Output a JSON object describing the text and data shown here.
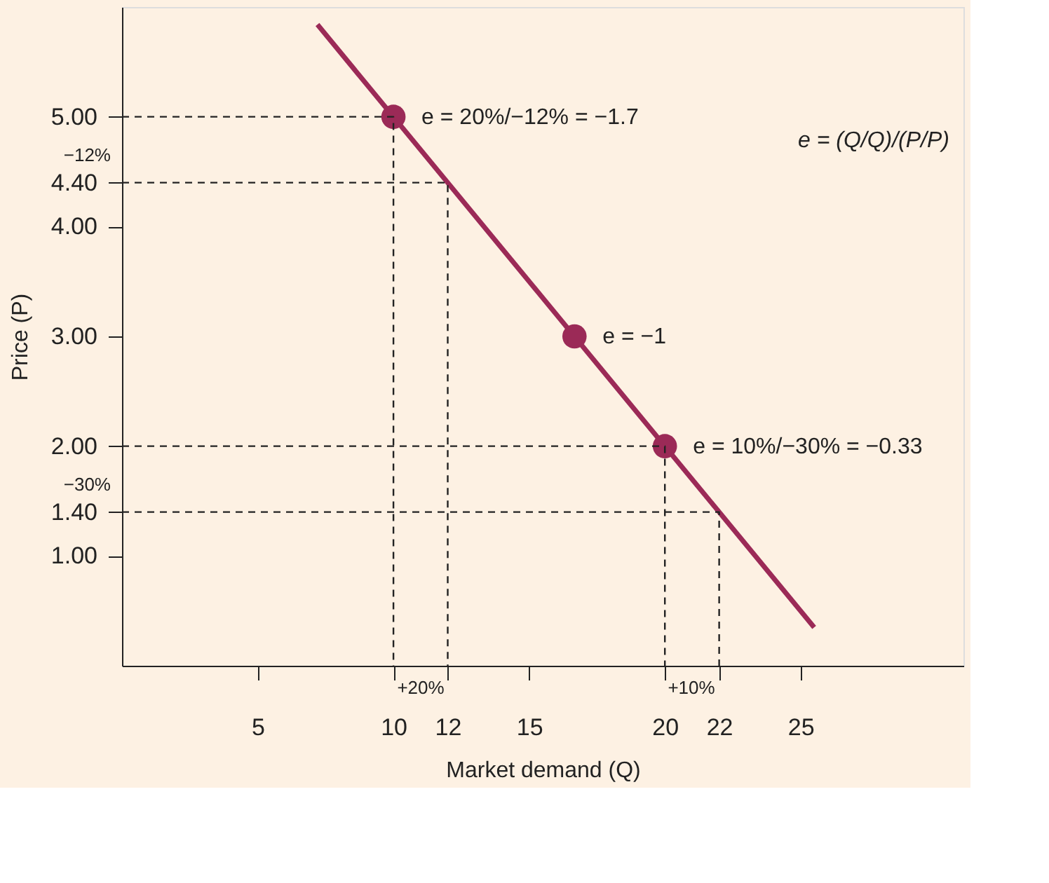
{
  "chart_data": {
    "type": "line",
    "xlabel": "Market demand (Q)",
    "ylabel": "Price (P)",
    "xlim": [
      0,
      31
    ],
    "ylim": [
      0,
      6
    ],
    "xticks": [
      5,
      10,
      12,
      15,
      20,
      22,
      25
    ],
    "yticks": [
      {
        "value": 1,
        "label": "1.00"
      },
      {
        "value": 1.4,
        "label": "1.40"
      },
      {
        "value": 2,
        "label": "2.00"
      },
      {
        "value": 3,
        "label": "3.00"
      },
      {
        "value": 4,
        "label": "4.00"
      },
      {
        "value": 4.4,
        "label": "4.40"
      },
      {
        "value": 5,
        "label": "5.00"
      }
    ],
    "grid": false,
    "series": [
      {
        "color": "#9b2a57",
        "x": [
          7.2,
          25.5
        ],
        "values": [
          5.84,
          0.35
        ],
        "marker": "none",
        "line_style": "solid"
      },
      {
        "type": "scatter",
        "color": "#9b2a57",
        "x": [
          10,
          16.67,
          20
        ],
        "values": [
          5,
          3,
          2
        ],
        "marker": "circle"
      },
      {
        "type": "line",
        "color": "#222222",
        "x": [
          0,
          10,
          10
        ],
        "values": [
          5,
          5,
          0
        ],
        "marker": "none",
        "line_style": "dashed"
      },
      {
        "type": "line",
        "color": "#222222",
        "x": [
          0,
          12,
          12
        ],
        "values": [
          4.4,
          4.4,
          0
        ],
        "marker": "none",
        "line_style": "dashed"
      },
      {
        "type": "line",
        "color": "#222222",
        "x": [
          0,
          20,
          20
        ],
        "values": [
          2,
          2,
          0
        ],
        "marker": "none",
        "line_style": "dashed"
      },
      {
        "type": "line",
        "color": "#222222",
        "x": [
          0,
          22,
          22
        ],
        "values": [
          1.4,
          1.4,
          0
        ],
        "marker": "none",
        "line_style": "dashed"
      }
    ],
    "annotations": [
      {
        "text": "e = 20%/−12% = −1.7",
        "x": 10,
        "y": 5
      },
      {
        "text": "e = −1",
        "x": 16.67,
        "y": 3
      },
      {
        "text": "e = 10%/−30% = −0.33",
        "x": 20,
        "y": 2
      },
      "e = (Q/Q)/(P/P)",
      "−12%",
      "−30%",
      "+20%",
      "+10%"
    ]
  }
}
